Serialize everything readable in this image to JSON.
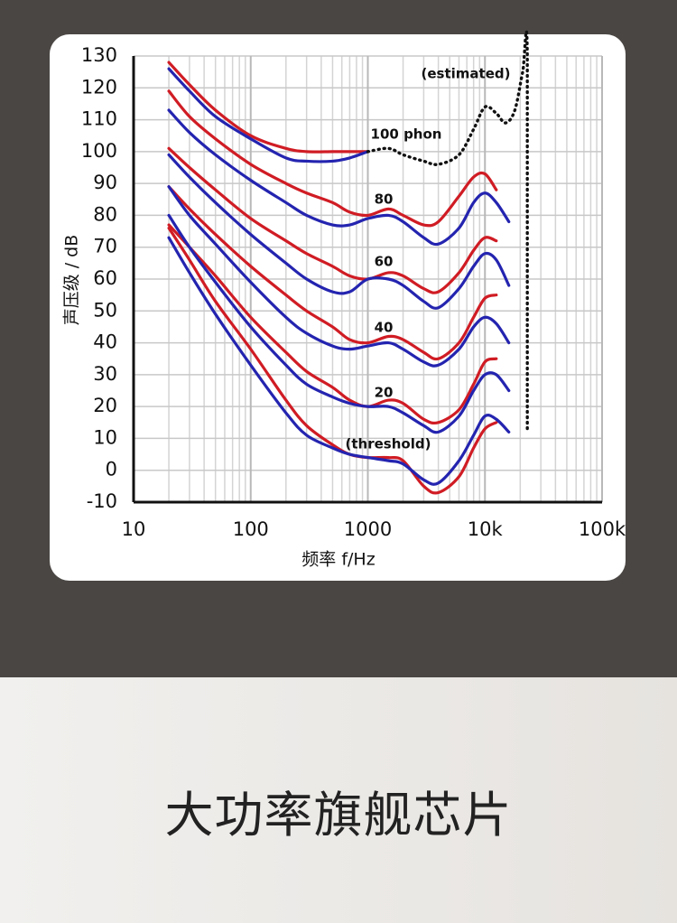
{
  "chart_data": {
    "type": "line",
    "y_label": "声压级 / dB",
    "x_label": "频率 f/Hz",
    "xscale": "log",
    "grid": true,
    "xlim": [
      10,
      100000
    ],
    "ylim": [
      -10,
      130
    ],
    "xticks": [
      10,
      100,
      1000,
      {
        "value": 10000,
        "label": "10k"
      },
      {
        "value": 100000,
        "label": "100k"
      }
    ],
    "minor_xticks": [
      20,
      30,
      40,
      50,
      60,
      70,
      80,
      90,
      200,
      300,
      400,
      500,
      600,
      700,
      800,
      900,
      2000,
      3000,
      4000,
      5000,
      6000,
      7000,
      8000,
      9000,
      20000,
      30000,
      40000,
      50000,
      60000,
      70000,
      80000,
      90000
    ],
    "yticks": [
      -10,
      0,
      10,
      20,
      30,
      40,
      50,
      60,
      70,
      80,
      90,
      100,
      110,
      120,
      130
    ],
    "x": [
      20,
      30,
      50,
      100,
      200,
      300,
      500,
      700,
      1000,
      1500,
      2000,
      3000,
      4000,
      6000,
      8000,
      10000,
      12500,
      16000
    ],
    "series": [
      {
        "color": "#d01c24",
        "values": [
          128,
          121,
          113,
          105,
          101,
          100,
          100,
          100,
          100,
          null,
          null,
          null,
          null,
          null,
          null,
          null,
          null,
          null
        ]
      },
      {
        "color": "#2424b0",
        "values": [
          126,
          119,
          111,
          104,
          98,
          97,
          97,
          98,
          100,
          null,
          null,
          null,
          null,
          null,
          null,
          null,
          null,
          null
        ]
      },
      {
        "color": "#d01c24",
        "values": [
          119,
          111,
          104,
          96,
          90,
          87,
          84,
          81,
          80,
          82,
          80,
          77,
          78,
          86,
          92,
          93,
          88,
          null
        ]
      },
      {
        "color": "#2424b0",
        "values": [
          113,
          106,
          99,
          91,
          84,
          80,
          77,
          77,
          79,
          80,
          78,
          73,
          71,
          76,
          84,
          87,
          84,
          78
        ]
      },
      {
        "color": "#d01c24",
        "values": [
          101,
          95,
          88,
          79,
          72,
          68,
          64,
          61,
          60,
          62,
          61,
          57,
          56,
          62,
          69,
          73,
          72,
          null
        ]
      },
      {
        "color": "#2424b0",
        "values": [
          99,
          92,
          84,
          74,
          65,
          60,
          56,
          56,
          60,
          60,
          58,
          53,
          51,
          57,
          64,
          68,
          66,
          58
        ]
      },
      {
        "color": "#d01c24",
        "values": [
          89,
          82,
          74,
          64,
          55,
          50,
          45,
          41,
          40,
          42,
          41,
          37,
          35,
          40,
          48,
          54,
          55,
          null
        ]
      },
      {
        "color": "#2424b0",
        "values": [
          89,
          80,
          71,
          59,
          48,
          43,
          39,
          38,
          39,
          40,
          38,
          34,
          33,
          38,
          45,
          48,
          46,
          40
        ]
      },
      {
        "color": "#d01c24",
        "values": [
          77,
          70,
          61,
          48,
          37,
          31,
          26,
          22,
          20,
          22,
          21,
          16,
          15,
          19,
          27,
          34,
          35,
          null
        ]
      },
      {
        "color": "#2424b0",
        "values": [
          80,
          70,
          59,
          45,
          33,
          27,
          23,
          21,
          20,
          20,
          18,
          14,
          12,
          17,
          25,
          30,
          30,
          25
        ]
      },
      {
        "color": "#d01c24",
        "values": [
          76,
          66,
          53,
          38,
          22,
          14,
          8,
          5,
          4,
          4,
          3,
          -5,
          -7,
          -2,
          7,
          13,
          15,
          null
        ]
      },
      {
        "color": "#2424b0",
        "values": [
          73,
          62,
          49,
          33,
          18,
          11,
          7,
          5,
          4,
          3,
          2,
          -3,
          -4,
          3,
          11,
          17,
          16,
          12
        ]
      },
      {
        "color": "#111111",
        "style": "dotted",
        "x": [
          1000,
          1500,
          2000,
          3000,
          4000,
          6000,
          8000,
          10000,
          12500,
          15000,
          18000,
          21000,
          23000,
          23000
        ],
        "values": [
          100,
          101,
          99,
          97,
          96,
          99,
          107,
          114,
          112,
          109,
          113,
          125,
          130,
          12
        ]
      }
    ],
    "annotations": [
      "(estimated)",
      "100 phon",
      "80",
      "60",
      "40",
      "20",
      "(threshold)"
    ]
  },
  "banner": {
    "text": "大功率旗舰芯片"
  }
}
